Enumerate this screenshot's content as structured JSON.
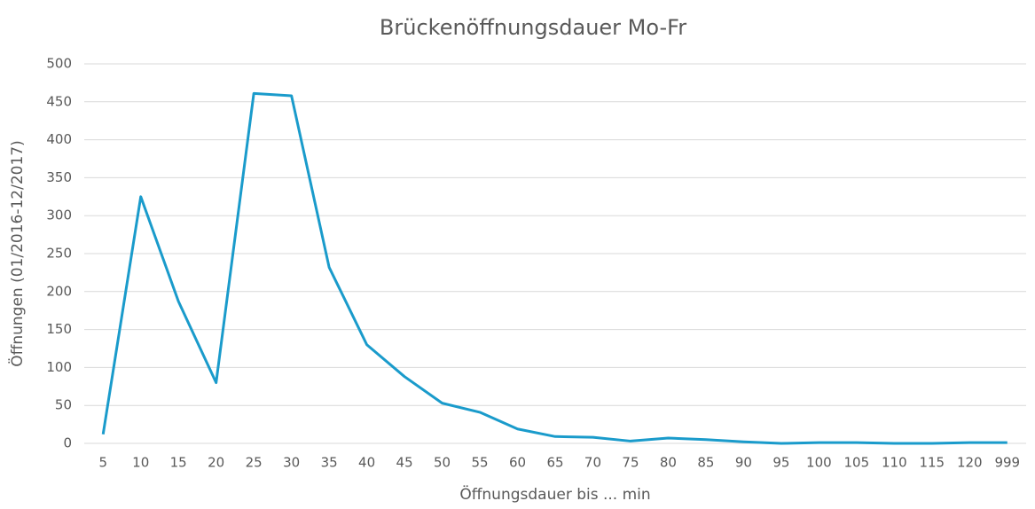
{
  "chart_data": {
    "type": "line",
    "title": "Brückenöffnungsdauer Mo-Fr",
    "x_label": "Öffnungsdauer  bis ... min",
    "y_label": "Öffnungen  (01/2016-12/2017)",
    "categories": [
      "5",
      "10",
      "15",
      "20",
      "25",
      "30",
      "35",
      "40",
      "45",
      "50",
      "55",
      "60",
      "65",
      "70",
      "75",
      "80",
      "85",
      "90",
      "95",
      "100",
      "105",
      "110",
      "115",
      "120",
      "999"
    ],
    "values": [
      12,
      325,
      187,
      80,
      461,
      458,
      232,
      130,
      88,
      53,
      41,
      19,
      9,
      8,
      3,
      7,
      5,
      2,
      0,
      1,
      1,
      0,
      0,
      1,
      1
    ],
    "color": "#1a9bcb",
    "ylim": [
      0,
      500
    ],
    "yticks": [
      0,
      50,
      100,
      150,
      200,
      250,
      300,
      350,
      400,
      450,
      500
    ],
    "grid": true
  }
}
